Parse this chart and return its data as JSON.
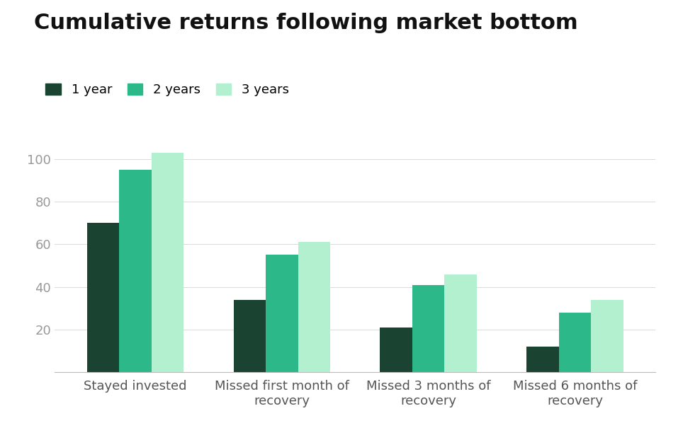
{
  "title": "Cumulative returns following market bottom",
  "categories": [
    "Stayed invested",
    "Missed first month of\nrecovery",
    "Missed 3 months of\nrecovery",
    "Missed 6 months of\nrecovery"
  ],
  "series": {
    "1 year": [
      70,
      34,
      21,
      12
    ],
    "2 years": [
      95,
      55,
      41,
      28
    ],
    "3 years": [
      103,
      61,
      46,
      34
    ]
  },
  "colors": {
    "1 year": "#1b4332",
    "2 years": "#2db88a",
    "3 years": "#b2f0d0"
  },
  "legend_labels": [
    "1 year",
    "2 years",
    "3 years"
  ],
  "ylim": [
    0,
    115
  ],
  "yticks": [
    20,
    40,
    60,
    80,
    100
  ],
  "background_color": "#ffffff",
  "title_fontsize": 22,
  "tick_fontsize": 13,
  "legend_fontsize": 13,
  "bar_width": 0.22,
  "xtick_color": "#555555",
  "ytick_color": "#999999",
  "grid_color": "#dddddd"
}
